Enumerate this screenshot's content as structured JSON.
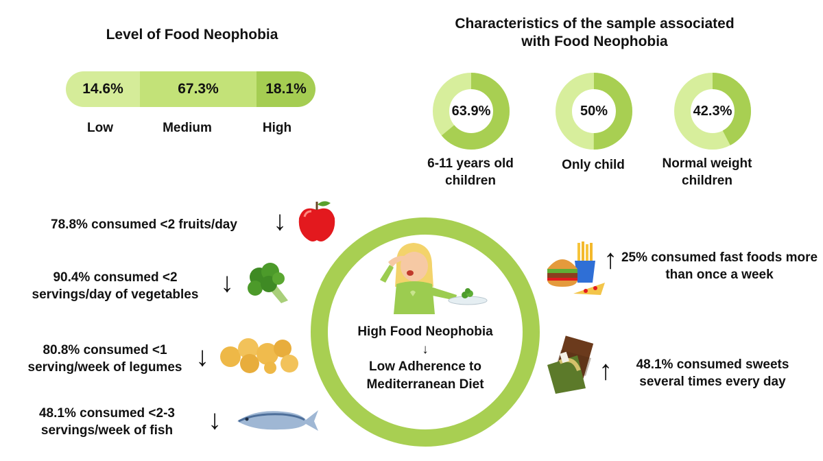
{
  "level": {
    "title": "Level of Food Neophobia",
    "segments": [
      {
        "percent": "14.6%",
        "value": 14.6,
        "label": "Low",
        "color": "#d5ec99"
      },
      {
        "percent": "67.3%",
        "value": 67.3,
        "label": "Medium",
        "color": "#c3e278"
      },
      {
        "percent": "18.1%",
        "value": 18.1,
        "label": "High",
        "color": "#a5cd52"
      }
    ]
  },
  "characteristics": {
    "title": "Characteristics of the sample associated with Food Neophobia",
    "items": [
      {
        "value_text": "63.9%",
        "value": 63.9,
        "label": "6-11 years old children"
      },
      {
        "value_text": "50%",
        "value": 50,
        "label": "Only child"
      },
      {
        "value_text": "42.3%",
        "value": 42.3,
        "label": "Normal weight children"
      }
    ],
    "ring_color": "#a8cf52",
    "ring_track_color": "#d7ee9c"
  },
  "center": {
    "line1": "High Food Neophobia",
    "arrow": "↓",
    "line2": "Low Adherence to Mediterranean Diet",
    "ring_color": "#a8cf52"
  },
  "foods": [
    {
      "text": "78.8% consumed <2 fruits/day",
      "arrow": "↓",
      "icon": "apple-icon"
    },
    {
      "text": "90.4% consumed <2 servings/day of vegetables",
      "arrow": "↓",
      "icon": "broccoli-icon"
    },
    {
      "text": "80.8% consumed <1 serving/week of legumes",
      "arrow": "↓",
      "icon": "chickpeas-icon"
    },
    {
      "text": "48.1% consumed <2-3 servings/week of fish",
      "arrow": "↓",
      "icon": "fish-icon"
    },
    {
      "text": "25% consumed fast foods more than once a week",
      "arrow": "↑",
      "icon": "fast-food-icon"
    },
    {
      "text": "48.1% consumed sweets several times every day",
      "arrow": "↑",
      "icon": "chocolate-icon"
    }
  ]
}
